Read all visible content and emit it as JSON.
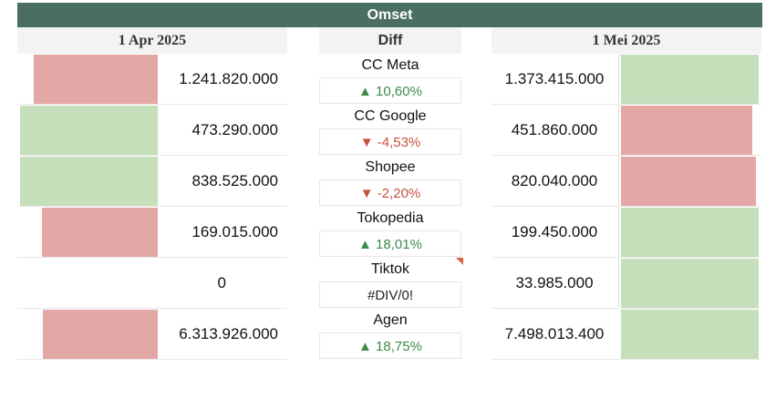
{
  "title": "Omset",
  "colors": {
    "header_bg": "#4b6e64",
    "red_bar": "#e3a8a5",
    "green_bar": "#c5dfbb",
    "up": "#3c8a4c",
    "down": "#c5533e"
  },
  "left": {
    "header": "1 Apr 2025"
  },
  "middle": {
    "header": "Diff"
  },
  "right": {
    "header": "1 Mei 2025"
  },
  "rows": [
    {
      "category": "CC Meta",
      "diff": "▲ 10,60%",
      "direction": "up",
      "apr_value": "1.241.820.000",
      "mei_value": "1.373.415.000",
      "apr_color": "red",
      "mei_color": "green"
    },
    {
      "category": "CC Google",
      "diff": "▼ -4,53%",
      "direction": "down",
      "apr_value": "473.290.000",
      "mei_value": "451.860.000",
      "apr_color": "green",
      "mei_color": "red"
    },
    {
      "category": "Shopee",
      "diff": "▼ -2,20%",
      "direction": "down",
      "apr_value": "838.525.000",
      "mei_value": "820.040.000",
      "apr_color": "green",
      "mei_color": "red"
    },
    {
      "category": "Tokopedia",
      "diff": "▲ 18,01%",
      "direction": "up",
      "apr_value": "169.015.000",
      "mei_value": "199.450.000",
      "apr_color": "red",
      "mei_color": "green"
    },
    {
      "category": "Tiktok",
      "diff": "#DIV/0!",
      "direction": "error",
      "apr_value": "0",
      "mei_value": "33.985.000",
      "apr_color": "none",
      "mei_color": "green"
    },
    {
      "category": "Agen",
      "diff": "▲ 18,75%",
      "direction": "up",
      "apr_value": "6.313.926.000",
      "mei_value": "7.498.013.400",
      "apr_color": "red",
      "mei_color": "green"
    }
  ]
}
